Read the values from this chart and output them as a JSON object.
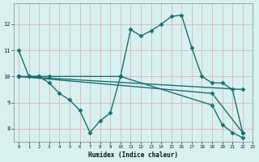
{
  "xlabel": "Humidex (Indice chaleur)",
  "bg_color": "#d8f0f0",
  "line_color": "#1a7070",
  "grid_color": "#c8e0e0",
  "xlim": [
    -0.5,
    23
  ],
  "ylim": [
    7.5,
    12.8
  ],
  "yticks": [
    8,
    9,
    10,
    11,
    12
  ],
  "xticks": [
    0,
    1,
    2,
    3,
    4,
    5,
    6,
    7,
    8,
    9,
    10,
    11,
    12,
    13,
    14,
    15,
    16,
    17,
    18,
    19,
    20,
    21,
    22,
    23
  ],
  "lines": [
    {
      "x": [
        0,
        1,
        2,
        3,
        10,
        11,
        12,
        13,
        14,
        15,
        16,
        17,
        18,
        19,
        20,
        21,
        22
      ],
      "y": [
        11.0,
        10.0,
        10.0,
        10.0,
        10.0,
        11.8,
        11.55,
        11.75,
        12.0,
        12.3,
        12.35,
        11.1,
        10.0,
        9.75,
        9.75,
        9.5,
        7.85
      ]
    },
    {
      "x": [
        0,
        1,
        2,
        3,
        4,
        5,
        6,
        7,
        8,
        9,
        10,
        19,
        20,
        21,
        22
      ],
      "y": [
        10.0,
        10.0,
        10.0,
        9.75,
        9.35,
        9.1,
        8.7,
        7.85,
        8.3,
        8.6,
        10.0,
        8.9,
        8.15,
        7.85,
        7.65
      ]
    },
    {
      "x": [
        0,
        22
      ],
      "y": [
        10.0,
        9.5
      ]
    },
    {
      "x": [
        0,
        19,
        22
      ],
      "y": [
        10.0,
        9.35,
        7.85
      ]
    }
  ],
  "marker": "D",
  "markersize": 2.5,
  "linewidth": 1.0
}
